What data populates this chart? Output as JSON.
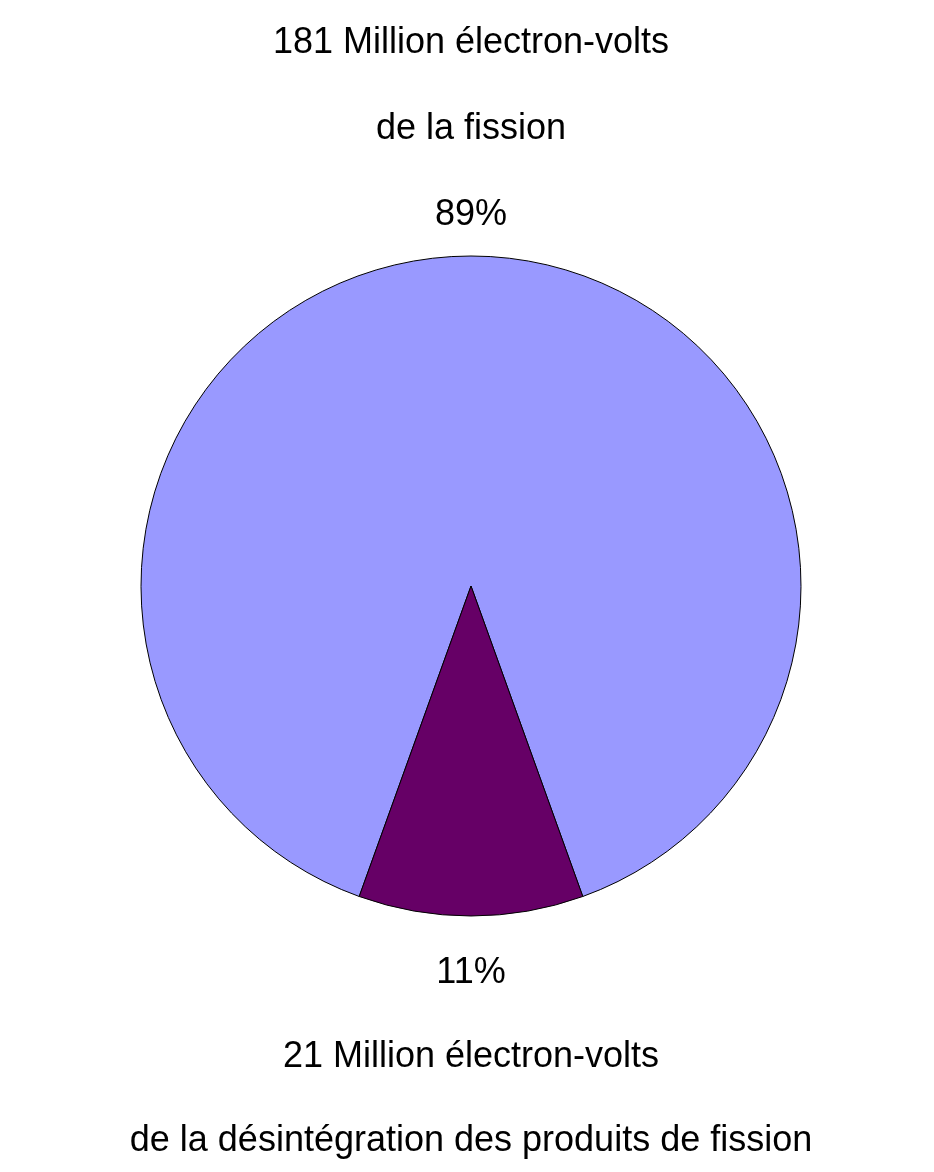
{
  "chart_data": {
    "type": "pie",
    "categories": [
      "181 Million électron-volts\nde la fission",
      "21 Million électron-volts\nde la désintégration des produits de fission"
    ],
    "values": [
      89,
      11
    ],
    "colors": [
      "#9999ff",
      "#660066"
    ],
    "value_labels": [
      "89%",
      "11%"
    ],
    "legend": false
  }
}
